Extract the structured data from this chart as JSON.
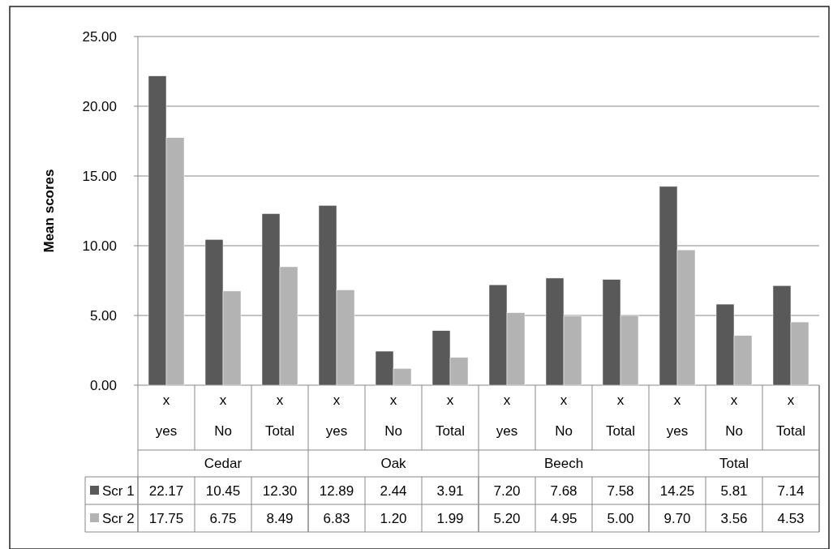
{
  "chart_data": {
    "type": "bar",
    "ylabel": "Mean scores",
    "categories": [
      "x\nyes",
      "x\nNo",
      "x\nTotal",
      "x\nyes",
      "x\nNo",
      "x\nTotal",
      "x\nyes",
      "x\nNo",
      "x\nTotal",
      "x\nyes",
      "x\nNo",
      "x\nTotal"
    ],
    "annotations": [
      "Cedar",
      "Oak",
      "Beech",
      "Total"
    ],
    "series": [
      {
        "name": "Scr 1",
        "color": "#595959",
        "values": [
          22.17,
          10.45,
          12.3,
          12.89,
          2.44,
          3.91,
          7.2,
          7.68,
          7.58,
          14.25,
          5.81,
          7.14
        ],
        "value_labels": [
          "22.17",
          "10.45",
          "12.30",
          "12.89",
          "2.44",
          "3.91",
          "7.20",
          "7.68",
          "7.58",
          "14.25",
          "5.81",
          "7.14"
        ]
      },
      {
        "name": "Scr 2",
        "color": "#b3b3b3",
        "values": [
          17.75,
          6.75,
          8.49,
          6.83,
          1.2,
          1.99,
          5.2,
          4.95,
          5.0,
          9.7,
          3.56,
          4.53
        ],
        "value_labels": [
          "17.75",
          "6.75",
          "8.49",
          "6.83",
          "1.20",
          "1.99",
          "5.20",
          "4.95",
          "5.00",
          "9.70",
          "3.56",
          "4.53"
        ]
      }
    ],
    "ylim": [
      0,
      25
    ],
    "yticks": [
      {
        "value": 0,
        "label": "0.00"
      },
      {
        "value": 5,
        "label": "5.00"
      },
      {
        "value": 10,
        "label": "10.00"
      },
      {
        "value": 15,
        "label": "15.00"
      },
      {
        "value": 20,
        "label": "20.00"
      },
      {
        "value": 25,
        "label": "25.00"
      }
    ],
    "grid": "y",
    "legend": "bottom"
  }
}
